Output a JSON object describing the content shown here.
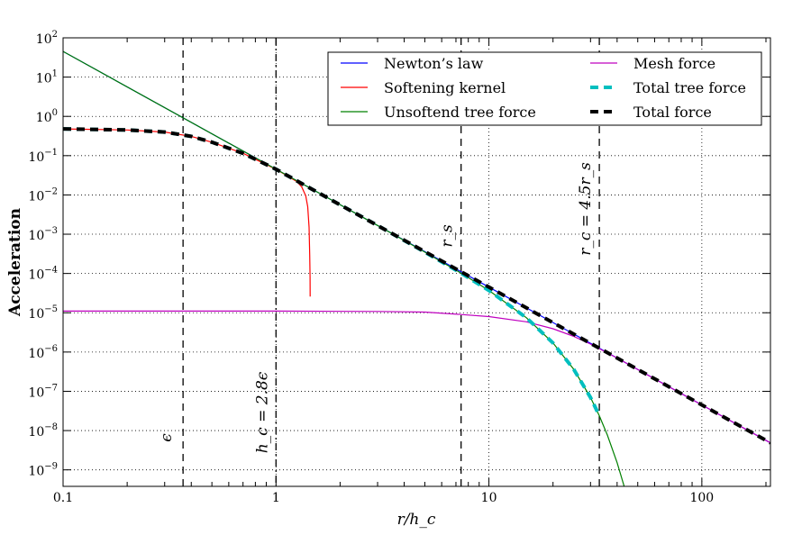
{
  "chart_data": {
    "type": "line",
    "xscale": "log",
    "yscale": "log",
    "xlim": [
      0.1,
      210
    ],
    "ylim": [
      3.8e-10,
      100
    ],
    "xlabel": "r/h_c",
    "ylabel": "Acceleration",
    "grid": true,
    "legend_placement": "top-right",
    "x_ticks": [
      {
        "value": 0.1,
        "label": "0.1"
      },
      {
        "value": 1,
        "label": "1"
      },
      {
        "value": 10,
        "label": "10"
      },
      {
        "value": 100,
        "label": "100"
      }
    ],
    "y_ticks": [
      {
        "value": 100,
        "base": "10",
        "exp": "2"
      },
      {
        "value": 10,
        "base": "10",
        "exp": "1"
      },
      {
        "value": 1,
        "base": "10",
        "exp": "0"
      },
      {
        "value": 0.1,
        "base": "10",
        "exp": "−1"
      },
      {
        "value": 0.01,
        "base": "10",
        "exp": "−2"
      },
      {
        "value": 0.001,
        "base": "10",
        "exp": "−3"
      },
      {
        "value": 0.0001,
        "base": "10",
        "exp": "−4"
      },
      {
        "value": 1e-05,
        "base": "10",
        "exp": "−5"
      },
      {
        "value": 1e-06,
        "base": "10",
        "exp": "−6"
      },
      {
        "value": 1e-07,
        "base": "10",
        "exp": "−7"
      },
      {
        "value": 1e-08,
        "base": "10",
        "exp": "−8"
      },
      {
        "value": 1e-09,
        "base": "10",
        "exp": "−9"
      }
    ],
    "vlines": [
      {
        "x": 0.366,
        "label": "ϵ",
        "style": "dashed"
      },
      {
        "x": 1.0,
        "label": "h_c = 2.8ϵ",
        "style": "dashdot"
      },
      {
        "x": 7.4,
        "label": "r_s",
        "style": "dashed"
      },
      {
        "x": 33.0,
        "label": "r_c = 4.5r_s",
        "style": "dashed"
      }
    ],
    "series": [
      {
        "name": "Newton’s law",
        "color": "#0000ff",
        "dash": "solid",
        "points": [
          [
            0.1,
            45
          ],
          [
            1,
            0.045
          ],
          [
            10,
            4.5e-05
          ],
          [
            100,
            4.5e-08
          ],
          [
            210,
            4.86e-09
          ]
        ]
      },
      {
        "name": "Softening kernel",
        "color": "#ff0000",
        "dash": "solid",
        "points": [
          [
            0.1,
            0.48
          ],
          [
            0.2,
            0.45
          ],
          [
            0.3,
            0.4
          ],
          [
            0.4,
            0.31
          ],
          [
            0.5,
            0.22
          ],
          [
            0.7,
            0.115
          ],
          [
            1,
            0.045
          ],
          [
            1.15,
            0.029
          ],
          [
            1.25,
            0.022
          ],
          [
            1.32,
            0.016
          ],
          [
            1.38,
            0.0095
          ],
          [
            1.41,
            0.005
          ],
          [
            1.43,
            0.0015
          ],
          [
            1.44,
            0.0003
          ],
          [
            1.445,
            8e-05
          ],
          [
            1.447,
            2.6e-05
          ]
        ]
      },
      {
        "name": "Unsoftend tree force",
        "color": "#008000",
        "dash": "solid",
        "points": [
          [
            0.1,
            45
          ],
          [
            1,
            0.045
          ],
          [
            3,
            0.00167
          ],
          [
            5,
            0.00035
          ],
          [
            7.4,
            0.000102
          ],
          [
            10,
            3.7e-05
          ],
          [
            15,
            7.47e-06
          ],
          [
            20,
            1.7e-06
          ],
          [
            25,
            3.66e-07
          ],
          [
            30,
            6.98e-08
          ],
          [
            33,
            2.38e-08
          ],
          [
            36,
            7.7e-09
          ],
          [
            40,
            1.53e-09
          ],
          [
            44,
            2.7e-10
          ]
        ]
      },
      {
        "name": "Mesh force",
        "color": "#bf00bf",
        "dash": "solid",
        "points": [
          [
            0.1,
            1.1e-05
          ],
          [
            1,
            1.1e-05
          ],
          [
            3,
            1.08e-05
          ],
          [
            5,
            1.04e-05
          ],
          [
            7.4,
            9e-06
          ],
          [
            10,
            8e-06
          ],
          [
            15,
            5.87e-06
          ],
          [
            20,
            3.92e-06
          ],
          [
            25,
            2.51e-06
          ],
          [
            30,
            1.6e-06
          ],
          [
            40,
            7.03e-07
          ],
          [
            60,
            2.08e-07
          ],
          [
            100,
            4.5e-08
          ],
          [
            210,
            4.86e-09
          ]
        ]
      },
      {
        "name": "Total tree force",
        "color": "#00bfbf",
        "dash": "dashed",
        "points": [
          [
            0.1,
            0.48
          ],
          [
            0.2,
            0.45
          ],
          [
            0.3,
            0.4
          ],
          [
            0.4,
            0.31
          ],
          [
            0.5,
            0.22
          ],
          [
            0.7,
            0.115
          ],
          [
            1,
            0.045
          ],
          [
            1.5,
            0.0133
          ],
          [
            2,
            0.0056
          ],
          [
            3,
            0.00167
          ],
          [
            5,
            0.00035
          ],
          [
            7.4,
            0.000102
          ],
          [
            10,
            3.7e-05
          ],
          [
            15,
            7.47e-06
          ],
          [
            20,
            1.7e-06
          ],
          [
            25,
            3.66e-07
          ],
          [
            30,
            6.98e-08
          ],
          [
            33,
            2.38e-08
          ]
        ]
      },
      {
        "name": "Total force",
        "color": "#000000",
        "dash": "dashed",
        "points": [
          [
            0.1,
            0.48
          ],
          [
            0.2,
            0.45
          ],
          [
            0.3,
            0.4
          ],
          [
            0.4,
            0.31
          ],
          [
            0.5,
            0.22
          ],
          [
            0.7,
            0.115
          ],
          [
            1,
            0.045
          ],
          [
            1.5,
            0.0133
          ],
          [
            2,
            0.0056
          ],
          [
            5,
            0.00036
          ],
          [
            10,
            4.5e-05
          ],
          [
            20,
            5.6e-06
          ],
          [
            50,
            3.6e-07
          ],
          [
            100,
            4.5e-08
          ],
          [
            210,
            4.86e-09
          ]
        ]
      }
    ]
  }
}
